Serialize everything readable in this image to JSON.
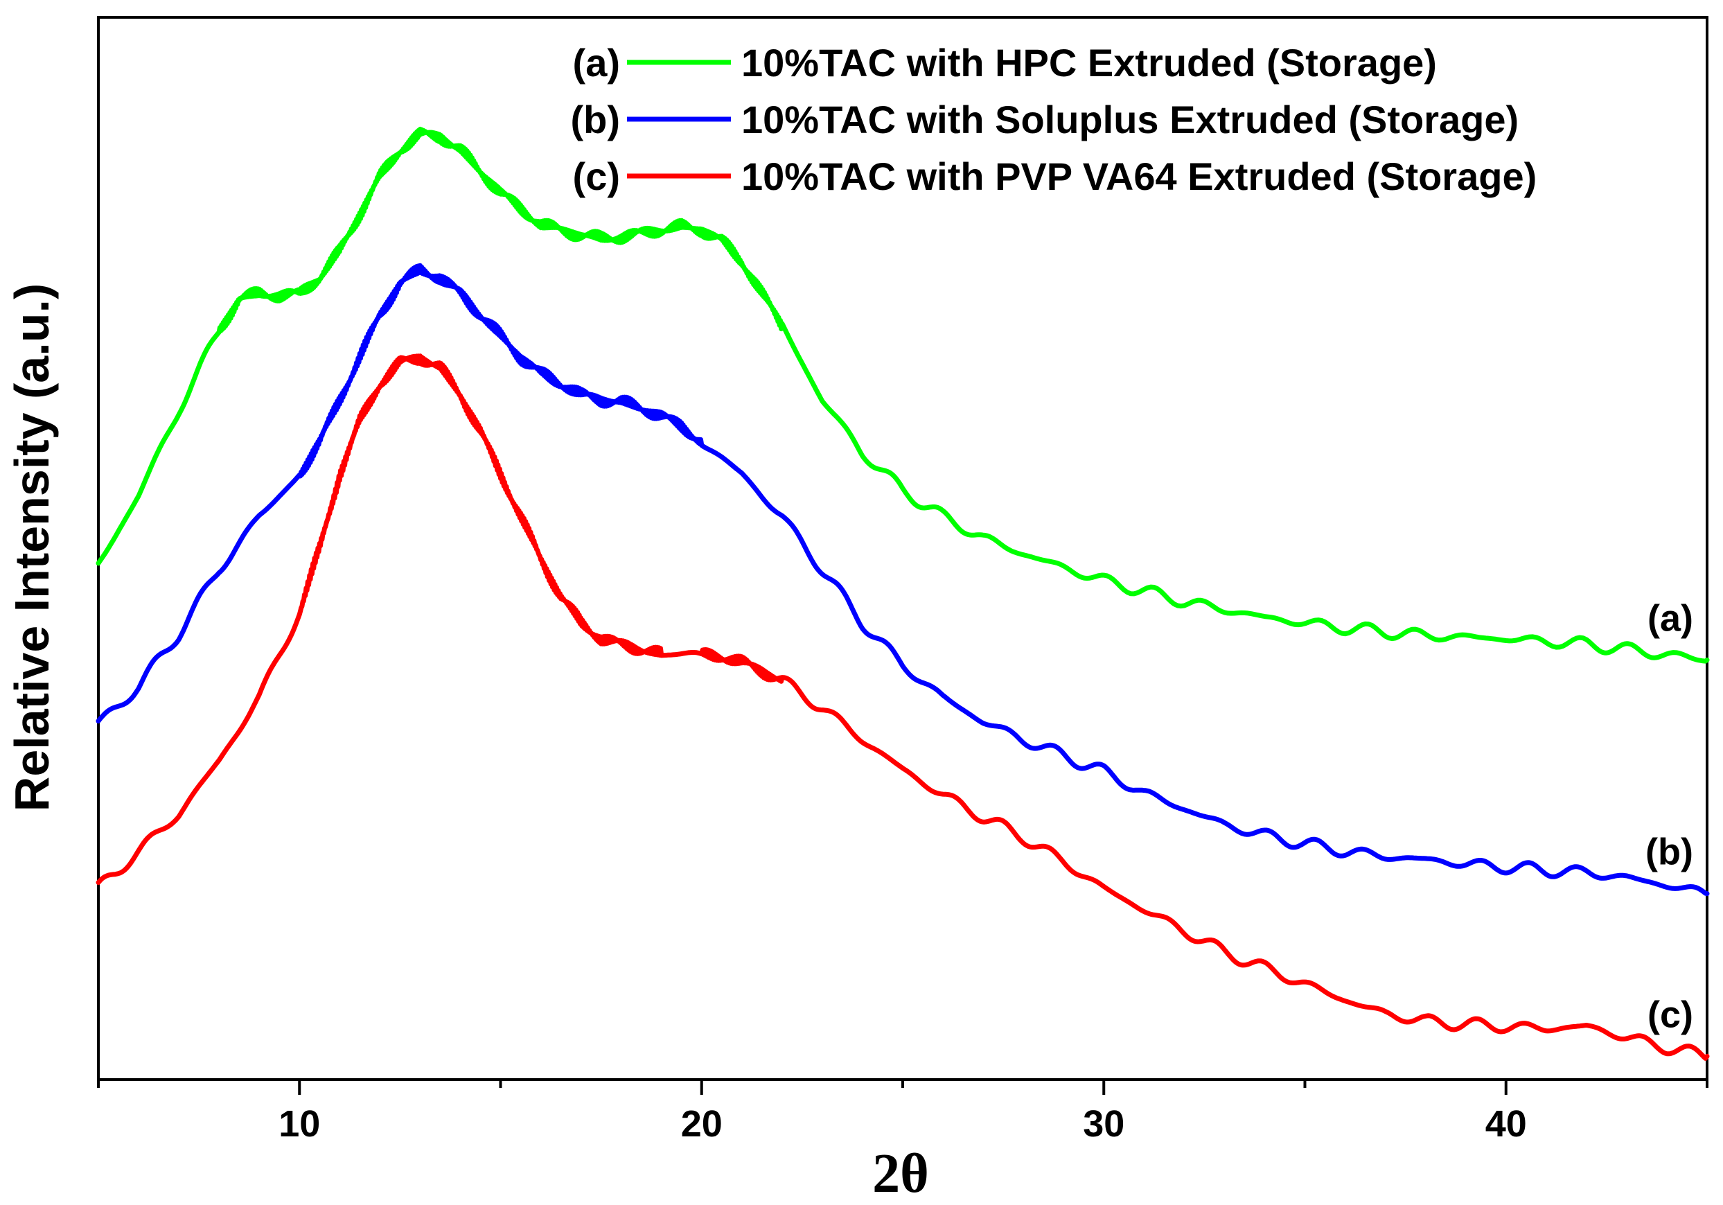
{
  "chart_data": {
    "type": "line",
    "xlabel": "2θ",
    "ylabel": "Relative Intensity (a.u.)",
    "xlim": [
      5,
      45
    ],
    "ylim": [
      0,
      1
    ],
    "x_ticks": [
      10,
      20,
      30,
      40
    ],
    "y_ticks_shown": false,
    "grid": false,
    "legend_position": "top-right",
    "series": [
      {
        "name": "10%TAC with HPC Extruded (Storage)",
        "tag": "(a)",
        "color": "#00ff00",
        "points": [
          [
            5,
            0.485
          ],
          [
            6,
            0.55
          ],
          [
            7,
            0.63
          ],
          [
            8,
            0.705
          ],
          [
            8.5,
            0.735
          ],
          [
            9,
            0.74
          ],
          [
            9.5,
            0.738
          ],
          [
            10,
            0.74
          ],
          [
            10.5,
            0.755
          ],
          [
            11,
            0.78
          ],
          [
            11.5,
            0.815
          ],
          [
            12,
            0.85
          ],
          [
            12.5,
            0.875
          ],
          [
            13,
            0.89
          ],
          [
            13.5,
            0.888
          ],
          [
            14,
            0.875
          ],
          [
            14.5,
            0.855
          ],
          [
            15,
            0.835
          ],
          [
            15.5,
            0.82
          ],
          [
            16,
            0.805
          ],
          [
            16.5,
            0.8
          ],
          [
            17,
            0.795
          ],
          [
            17.5,
            0.792
          ],
          [
            18,
            0.793
          ],
          [
            18.5,
            0.797
          ],
          [
            19,
            0.8
          ],
          [
            19.5,
            0.803
          ],
          [
            20,
            0.8
          ],
          [
            20.5,
            0.79
          ],
          [
            21,
            0.77
          ],
          [
            21.5,
            0.74
          ],
          [
            22,
            0.71
          ],
          [
            23,
            0.64
          ],
          [
            24,
            0.59
          ],
          [
            25,
            0.555
          ],
          [
            26,
            0.53
          ],
          [
            27,
            0.51
          ],
          [
            28,
            0.495
          ],
          [
            29,
            0.482
          ],
          [
            30,
            0.47
          ],
          [
            32,
            0.45
          ],
          [
            34,
            0.435
          ],
          [
            36,
            0.425
          ],
          [
            38,
            0.418
          ],
          [
            40,
            0.415
          ],
          [
            42,
            0.41
          ],
          [
            43,
            0.405
          ],
          [
            44,
            0.4
          ],
          [
            45,
            0.395
          ]
        ]
      },
      {
        "name": "10%TAC with Soluplus Extruded (Storage)",
        "tag": "(b)",
        "color": "#0000ff",
        "points": [
          [
            5,
            0.335
          ],
          [
            6,
            0.37
          ],
          [
            7,
            0.42
          ],
          [
            8,
            0.48
          ],
          [
            9,
            0.53
          ],
          [
            10,
            0.57
          ],
          [
            10.5,
            0.6
          ],
          [
            11,
            0.64
          ],
          [
            11.5,
            0.68
          ],
          [
            12,
            0.72
          ],
          [
            12.5,
            0.75
          ],
          [
            13,
            0.762
          ],
          [
            13.5,
            0.755
          ],
          [
            14,
            0.74
          ],
          [
            14.5,
            0.72
          ],
          [
            15,
            0.7
          ],
          [
            15.5,
            0.68
          ],
          [
            16,
            0.665
          ],
          [
            16.5,
            0.655
          ],
          [
            17,
            0.645
          ],
          [
            17.5,
            0.64
          ],
          [
            18,
            0.638
          ],
          [
            18.5,
            0.632
          ],
          [
            19,
            0.625
          ],
          [
            19.5,
            0.615
          ],
          [
            20,
            0.6
          ],
          [
            21,
            0.57
          ],
          [
            22,
            0.53
          ],
          [
            23,
            0.48
          ],
          [
            24,
            0.43
          ],
          [
            25,
            0.39
          ],
          [
            26,
            0.36
          ],
          [
            27,
            0.337
          ],
          [
            28,
            0.32
          ],
          [
            29,
            0.305
          ],
          [
            30,
            0.29
          ],
          [
            31,
            0.27
          ],
          [
            32,
            0.255
          ],
          [
            33,
            0.24
          ],
          [
            34,
            0.23
          ],
          [
            35,
            0.222
          ],
          [
            36,
            0.215
          ],
          [
            37,
            0.21
          ],
          [
            38,
            0.207
          ],
          [
            39,
            0.203
          ],
          [
            40,
            0.2
          ],
          [
            41,
            0.197
          ],
          [
            42,
            0.195
          ],
          [
            43,
            0.19
          ],
          [
            44,
            0.183
          ],
          [
            45,
            0.175
          ]
        ]
      },
      {
        "name": "10%TAC with PVP VA64 Extruded (Storage)",
        "tag": "(c)",
        "color": "#ff0000",
        "points": [
          [
            5,
            0.18
          ],
          [
            6,
            0.215
          ],
          [
            7,
            0.25
          ],
          [
            8,
            0.3
          ],
          [
            9,
            0.36
          ],
          [
            10,
            0.44
          ],
          [
            10.5,
            0.5
          ],
          [
            11,
            0.57
          ],
          [
            11.5,
            0.62
          ],
          [
            12,
            0.655
          ],
          [
            12.5,
            0.675
          ],
          [
            13,
            0.68
          ],
          [
            13.5,
            0.67
          ],
          [
            14,
            0.645
          ],
          [
            14.5,
            0.61
          ],
          [
            15,
            0.57
          ],
          [
            15.5,
            0.53
          ],
          [
            16,
            0.49
          ],
          [
            16.5,
            0.455
          ],
          [
            17,
            0.43
          ],
          [
            17.5,
            0.415
          ],
          [
            18,
            0.41
          ],
          [
            18.5,
            0.405
          ],
          [
            19,
            0.4
          ],
          [
            20,
            0.4
          ],
          [
            20.5,
            0.398
          ],
          [
            21,
            0.393
          ],
          [
            21.5,
            0.385
          ],
          [
            22,
            0.375
          ],
          [
            23,
            0.35
          ],
          [
            24,
            0.32
          ],
          [
            25,
            0.292
          ],
          [
            26,
            0.268
          ],
          [
            27,
            0.247
          ],
          [
            28,
            0.228
          ],
          [
            29,
            0.205
          ],
          [
            30,
            0.18
          ],
          [
            31,
            0.16
          ],
          [
            32,
            0.14
          ],
          [
            33,
            0.12
          ],
          [
            34,
            0.105
          ],
          [
            35,
            0.09
          ],
          [
            36,
            0.075
          ],
          [
            37,
            0.062
          ],
          [
            38,
            0.055
          ],
          [
            39,
            0.052
          ],
          [
            40,
            0.05
          ],
          [
            41,
            0.048
          ],
          [
            42,
            0.05
          ],
          [
            43,
            0.04
          ],
          [
            44,
            0.03
          ],
          [
            45,
            0.022
          ]
        ]
      }
    ]
  }
}
